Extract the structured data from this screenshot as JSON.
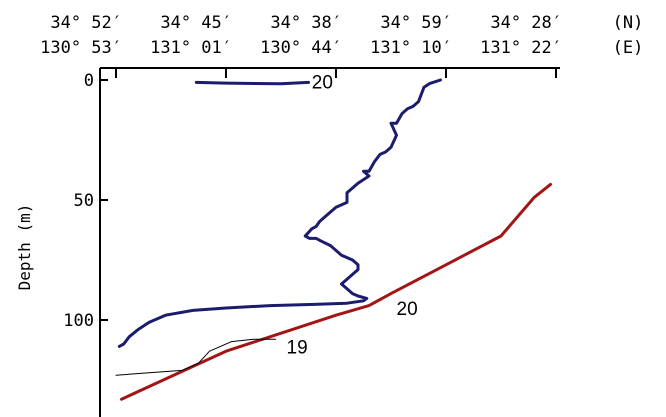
{
  "chart_data": {
    "type": "line",
    "title": "",
    "ylabel": "Depth (m)",
    "ylim": [
      0,
      135
    ],
    "y_ticks": [
      0,
      50,
      100
    ],
    "y_inverted": true,
    "top_axis": {
      "units": [
        "(N)",
        "(E)"
      ],
      "ticks": [
        {
          "n": "34° 52′",
          "e": "130° 53′"
        },
        {
          "n": "34° 45′",
          "e": "131° 01′"
        },
        {
          "n": "34° 38′",
          "e": "130° 44′"
        },
        {
          "n": "34° 59′",
          "e": "131° 10′"
        },
        {
          "n": "34° 28′",
          "e": "131° 22′"
        }
      ]
    },
    "x_scale": [
      0,
      4
    ],
    "colors": {
      "navy": "#1c1c6e",
      "red": "#a31515",
      "thin": "#000000"
    },
    "series": [
      {
        "id": "navy-top",
        "color": "navy",
        "width": 3,
        "points": [
          [
            0.73,
            1
          ],
          [
            1.0,
            1.3
          ],
          [
            1.5,
            1.6
          ],
          [
            1.75,
            1
          ]
        ]
      },
      {
        "id": "navy-profile",
        "color": "navy",
        "width": 3,
        "points": [
          [
            2.95,
            0
          ],
          [
            2.85,
            1.5
          ],
          [
            2.8,
            3
          ],
          [
            2.75,
            9
          ],
          [
            2.7,
            11
          ],
          [
            2.65,
            12
          ],
          [
            2.6,
            14
          ],
          [
            2.55,
            18
          ],
          [
            2.5,
            18
          ],
          [
            2.55,
            23
          ],
          [
            2.5,
            28
          ],
          [
            2.45,
            30
          ],
          [
            2.4,
            31
          ],
          [
            2.35,
            34
          ],
          [
            2.3,
            38
          ],
          [
            2.25,
            38
          ],
          [
            2.3,
            40
          ],
          [
            2.2,
            43
          ],
          [
            2.15,
            45
          ],
          [
            2.1,
            47
          ],
          [
            2.1,
            49
          ],
          [
            2.1,
            51
          ],
          [
            2.0,
            53
          ],
          [
            1.95,
            55
          ],
          [
            1.9,
            57
          ],
          [
            1.85,
            59
          ],
          [
            1.82,
            61
          ],
          [
            1.78,
            62
          ],
          [
            1.74,
            64
          ],
          [
            1.72,
            65
          ],
          [
            1.76,
            66
          ],
          [
            1.82,
            66
          ],
          [
            1.86,
            67
          ],
          [
            1.95,
            69
          ],
          [
            2.05,
            73
          ],
          [
            2.15,
            75
          ],
          [
            2.2,
            77
          ],
          [
            2.2,
            79
          ],
          [
            2.15,
            81
          ],
          [
            2.1,
            83
          ],
          [
            2.05,
            85
          ],
          [
            2.1,
            87
          ],
          [
            2.15,
            89
          ],
          [
            2.2,
            90
          ],
          [
            2.28,
            91
          ],
          [
            2.25,
            92
          ],
          [
            2.1,
            93
          ],
          [
            1.8,
            93.5
          ],
          [
            1.4,
            94
          ],
          [
            1.0,
            95
          ],
          [
            0.7,
            96
          ],
          [
            0.45,
            98
          ],
          [
            0.3,
            101
          ],
          [
            0.2,
            104
          ],
          [
            0.12,
            107
          ],
          [
            0.07,
            110
          ],
          [
            0.03,
            111
          ]
        ],
        "label": {
          "text": "",
          "x": 2.4,
          "y": 92
        }
      },
      {
        "id": "red-bottom",
        "color": "red",
        "width": 3,
        "points": [
          [
            0.05,
            133
          ],
          [
            1.0,
            113
          ],
          [
            2.0,
            98
          ],
          [
            2.3,
            94
          ],
          [
            2.5,
            89
          ],
          [
            3.0,
            77
          ],
          [
            3.5,
            65
          ],
          [
            3.65,
            57
          ],
          [
            3.8,
            49
          ],
          [
            3.95,
            43.5
          ]
        ],
        "label": {
          "text": "20",
          "x": 2.55,
          "y": 98
        }
      },
      {
        "id": "thin-bottom",
        "color": "thin",
        "width": 1,
        "points": [
          [
            0.0,
            123
          ],
          [
            0.3,
            122
          ],
          [
            0.6,
            121
          ],
          [
            0.75,
            118
          ],
          [
            0.85,
            113
          ],
          [
            0.95,
            111
          ],
          [
            1.05,
            109
          ],
          [
            1.25,
            108
          ],
          [
            1.45,
            108
          ]
        ],
        "label": {
          "text": "19",
          "x": 1.55,
          "y": 114
        }
      }
    ],
    "top_series_label": {
      "text": "20",
      "x": 1.78,
      "y": 1
    }
  }
}
